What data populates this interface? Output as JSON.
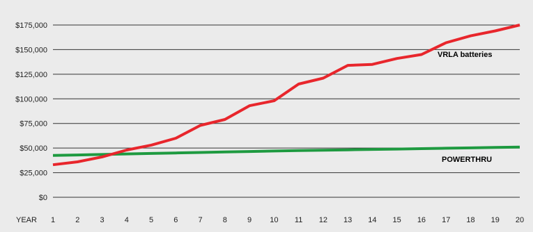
{
  "chart_data": {
    "type": "line",
    "xlabel": "YEAR",
    "ylabel": "",
    "x": [
      1,
      2,
      3,
      4,
      5,
      6,
      7,
      8,
      9,
      10,
      11,
      12,
      13,
      14,
      15,
      16,
      17,
      18,
      19,
      20
    ],
    "ylim": [
      0,
      175000
    ],
    "yticks": [
      0,
      25000,
      50000,
      75000,
      100000,
      125000,
      150000,
      175000
    ],
    "ytick_labels": [
      "$0",
      "$25,000",
      "$50,000",
      "$75,000",
      "$100,000",
      "$125,000",
      "$150,000",
      "$175,000"
    ],
    "grid": "horizontal",
    "series": [
      {
        "name": "VRLA batteries",
        "color": "#e8262c",
        "values": [
          33000,
          36000,
          41000,
          48000,
          53000,
          60000,
          73000,
          79000,
          93000,
          98000,
          115000,
          121000,
          134000,
          135000,
          141000,
          145000,
          157000,
          164000,
          169000,
          175000
        ]
      },
      {
        "name": "POWERTHRU",
        "color": "#1e9a40",
        "values": [
          42500,
          43000,
          43500,
          44000,
          44500,
          45000,
          45500,
          46000,
          46500,
          47000,
          47400,
          47800,
          48200,
          48600,
          49000,
          49400,
          49800,
          50200,
          50600,
          51000
        ]
      }
    ]
  }
}
